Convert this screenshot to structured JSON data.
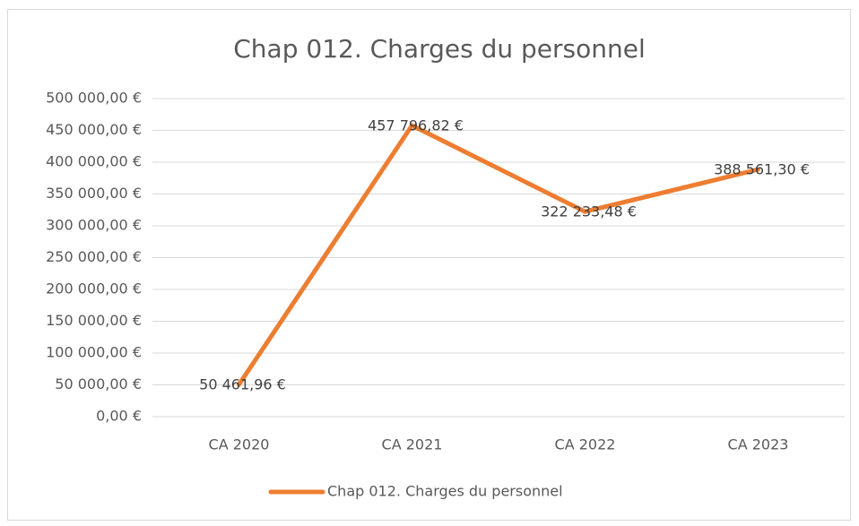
{
  "chart_data": {
    "type": "line",
    "title": "Chap 012. Charges du personnel",
    "categories": [
      "CA 2020",
      "CA 2021",
      "CA 2022",
      "CA 2023"
    ],
    "series": [
      {
        "name": "Chap 012. Charges du personnel",
        "color": "#ed7d31",
        "values": [
          50461.96,
          457796.82,
          322233.48,
          388561.3
        ],
        "value_labels": [
          "50 461,96 €",
          "457 796,82 €",
          "322 233,48 €",
          "388 561,30 €"
        ]
      }
    ],
    "ylim": [
      0,
      500000
    ],
    "yticks": [
      {
        "value": 0,
        "label": "0,00 €"
      },
      {
        "value": 50000,
        "label": "50 000,00 €"
      },
      {
        "value": 100000,
        "label": "100 000,00 €"
      },
      {
        "value": 150000,
        "label": "150 000,00 €"
      },
      {
        "value": 200000,
        "label": "200 000,00 €"
      },
      {
        "value": 250000,
        "label": "250 000,00 €"
      },
      {
        "value": 300000,
        "label": "300 000,00 €"
      },
      {
        "value": 350000,
        "label": "350 000,00 €"
      },
      {
        "value": 400000,
        "label": "400 000,00 €"
      },
      {
        "value": 450000,
        "label": "450 000,00 €"
      },
      {
        "value": 500000,
        "label": "500 000,00 €"
      }
    ],
    "grid": true,
    "legend": "bottom"
  }
}
